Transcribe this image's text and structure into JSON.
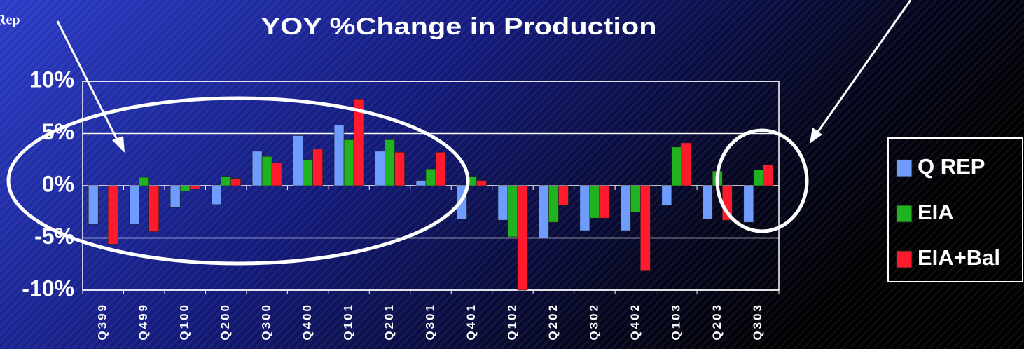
{
  "chart_data": {
    "type": "bar",
    "title": "YOY %Change in Production",
    "annotations": [
      "Rep"
    ],
    "categories": [
      "Q399",
      "Q499",
      "Q100",
      "Q200",
      "Q300",
      "Q400",
      "Q101",
      "Q201",
      "Q301",
      "Q401",
      "Q102",
      "Q202",
      "Q302",
      "Q402",
      "Q103",
      "Q203",
      "Q303"
    ],
    "series": [
      {
        "name": "Q REP",
        "color": "#6f9cff",
        "values": [
          -3.7,
          -3.7,
          -2.1,
          -1.8,
          3.3,
          4.8,
          5.8,
          3.3,
          0.5,
          -3.2,
          -3.3,
          -5.0,
          -4.3,
          -4.3,
          -1.9,
          -3.2,
          -3.5
        ]
      },
      {
        "name": "EIA",
        "color": "#1fb31f",
        "values": [
          0,
          0.8,
          -0.5,
          0.9,
          2.8,
          2.5,
          4.4,
          4.4,
          1.6,
          0.9,
          -4.9,
          -3.5,
          -3.1,
          -2.5,
          3.7,
          1.4,
          1.5
        ]
      },
      {
        "name": "EIA+Bal",
        "color": "#ff1a2e",
        "values": [
          -5.6,
          -4.4,
          -0.3,
          0.7,
          2.2,
          3.5,
          8.3,
          3.2,
          3.2,
          0.5,
          -10,
          -1.9,
          -3.1,
          -8.1,
          4.1,
          -3.3,
          2.0
        ]
      }
    ],
    "ylim": [
      -10,
      10
    ],
    "yticks": [
      {
        "value": -10,
        "label": "-10%"
      },
      {
        "value": -5,
        "label": "-5%"
      },
      {
        "value": 0,
        "label": "0%"
      },
      {
        "value": 5,
        "label": "5%"
      },
      {
        "value": 10,
        "label": "10%"
      }
    ],
    "grid": true,
    "legend": "right"
  }
}
